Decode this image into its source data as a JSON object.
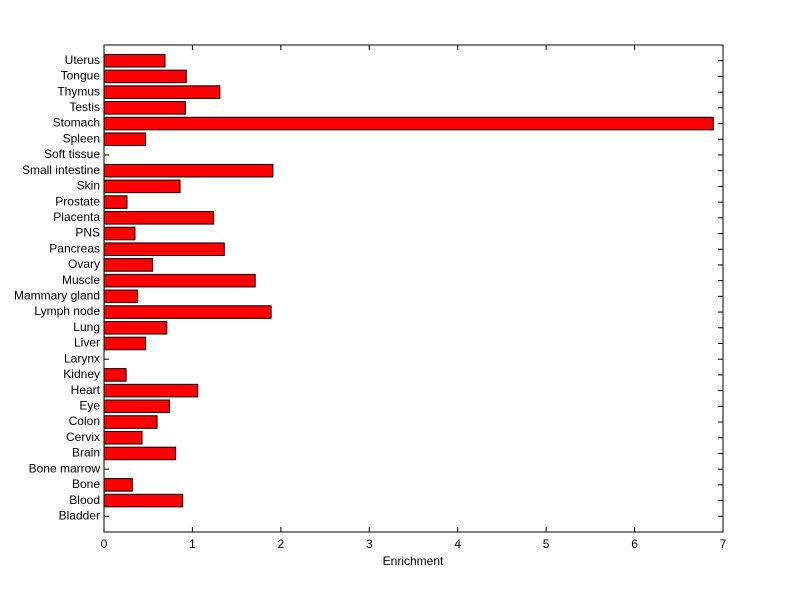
{
  "chart_data": {
    "type": "barh",
    "xlabel": "Enrichment",
    "categories": [
      "Bladder",
      "Blood",
      "Bone",
      "Bone marrow",
      "Brain",
      "Cervix",
      "Colon",
      "Eye",
      "Heart",
      "Kidney",
      "Larynx",
      "Liver",
      "Lung",
      "Lymph node",
      "Mammary gland",
      "Muscle",
      "Ovary",
      "Pancreas",
      "PNS",
      "Placenta",
      "Prostate",
      "Skin",
      "Small intestine",
      "Soft tissue",
      "Spleen",
      "Stomach",
      "Testis",
      "Thymus",
      "Tongue",
      "Uterus"
    ],
    "values": [
      0,
      0.89,
      0.32,
      0,
      0.81,
      0.43,
      0.6,
      0.74,
      1.06,
      0.25,
      0,
      0.47,
      0.71,
      1.89,
      0.38,
      1.71,
      0.55,
      1.36,
      0.35,
      1.24,
      0.26,
      0.86,
      1.91,
      0,
      0.47,
      6.89,
      0.92,
      1.31,
      0.93,
      0.69
    ],
    "color": "#ff0000",
    "xlim": [
      0,
      7
    ],
    "xticks": [
      0,
      1,
      2,
      3,
      4,
      5,
      6,
      7
    ]
  }
}
